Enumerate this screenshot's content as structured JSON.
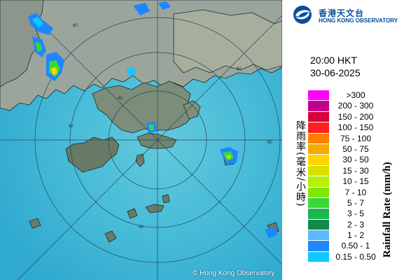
{
  "map": {
    "copyright": "© Hong Kong Observatory",
    "range_ring_labels": [
      "60",
      "60",
      "60",
      "60",
      "40",
      "40"
    ],
    "colors": {
      "sea": "#44b9d6",
      "land": "#9aa49a",
      "rings": "#2a4a5a"
    }
  },
  "panel": {
    "logo": {
      "zh": "香港天文台",
      "en": "HONG KONG OBSERVATORY",
      "icon": "hko-swirl-logo-icon",
      "color": "#0a4f9e"
    },
    "time": "20:00 HKT",
    "date": "30-06-2025",
    "legend": {
      "title_zh": "降雨率(毫米/小時)",
      "title_en": "Rainfall Rate (mm/h)",
      "items": [
        {
          "range": ">300",
          "color": "#f0f"
        },
        {
          "range": "200 - 300",
          "color": "#c0008a"
        },
        {
          "range": "150 - 200",
          "color": "#d8003c"
        },
        {
          "range": "100 - 150",
          "color": "#ff1f1f"
        },
        {
          "range": "75 - 100",
          "color": "#ff7f00"
        },
        {
          "range": "50 - 75",
          "color": "#f4a800"
        },
        {
          "range": "30 - 50",
          "color": "#ffd400"
        },
        {
          "range": "15 - 30",
          "color": "#d8e000"
        },
        {
          "range": "10 - 15",
          "color": "#b4f000"
        },
        {
          "range": "7 - 10",
          "color": "#7fe800"
        },
        {
          "range": "5 - 7",
          "color": "#38d838"
        },
        {
          "range": "3 - 5",
          "color": "#1ab84a"
        },
        {
          "range": "2 - 3",
          "color": "#0f8a4a"
        },
        {
          "range": "1 - 2",
          "color": "#5cb8ff"
        },
        {
          "range": "0.50 - 1",
          "color": "#1f86ff"
        },
        {
          "range": "0.15 - 0.50",
          "color": "#0fc8ff"
        }
      ]
    }
  }
}
